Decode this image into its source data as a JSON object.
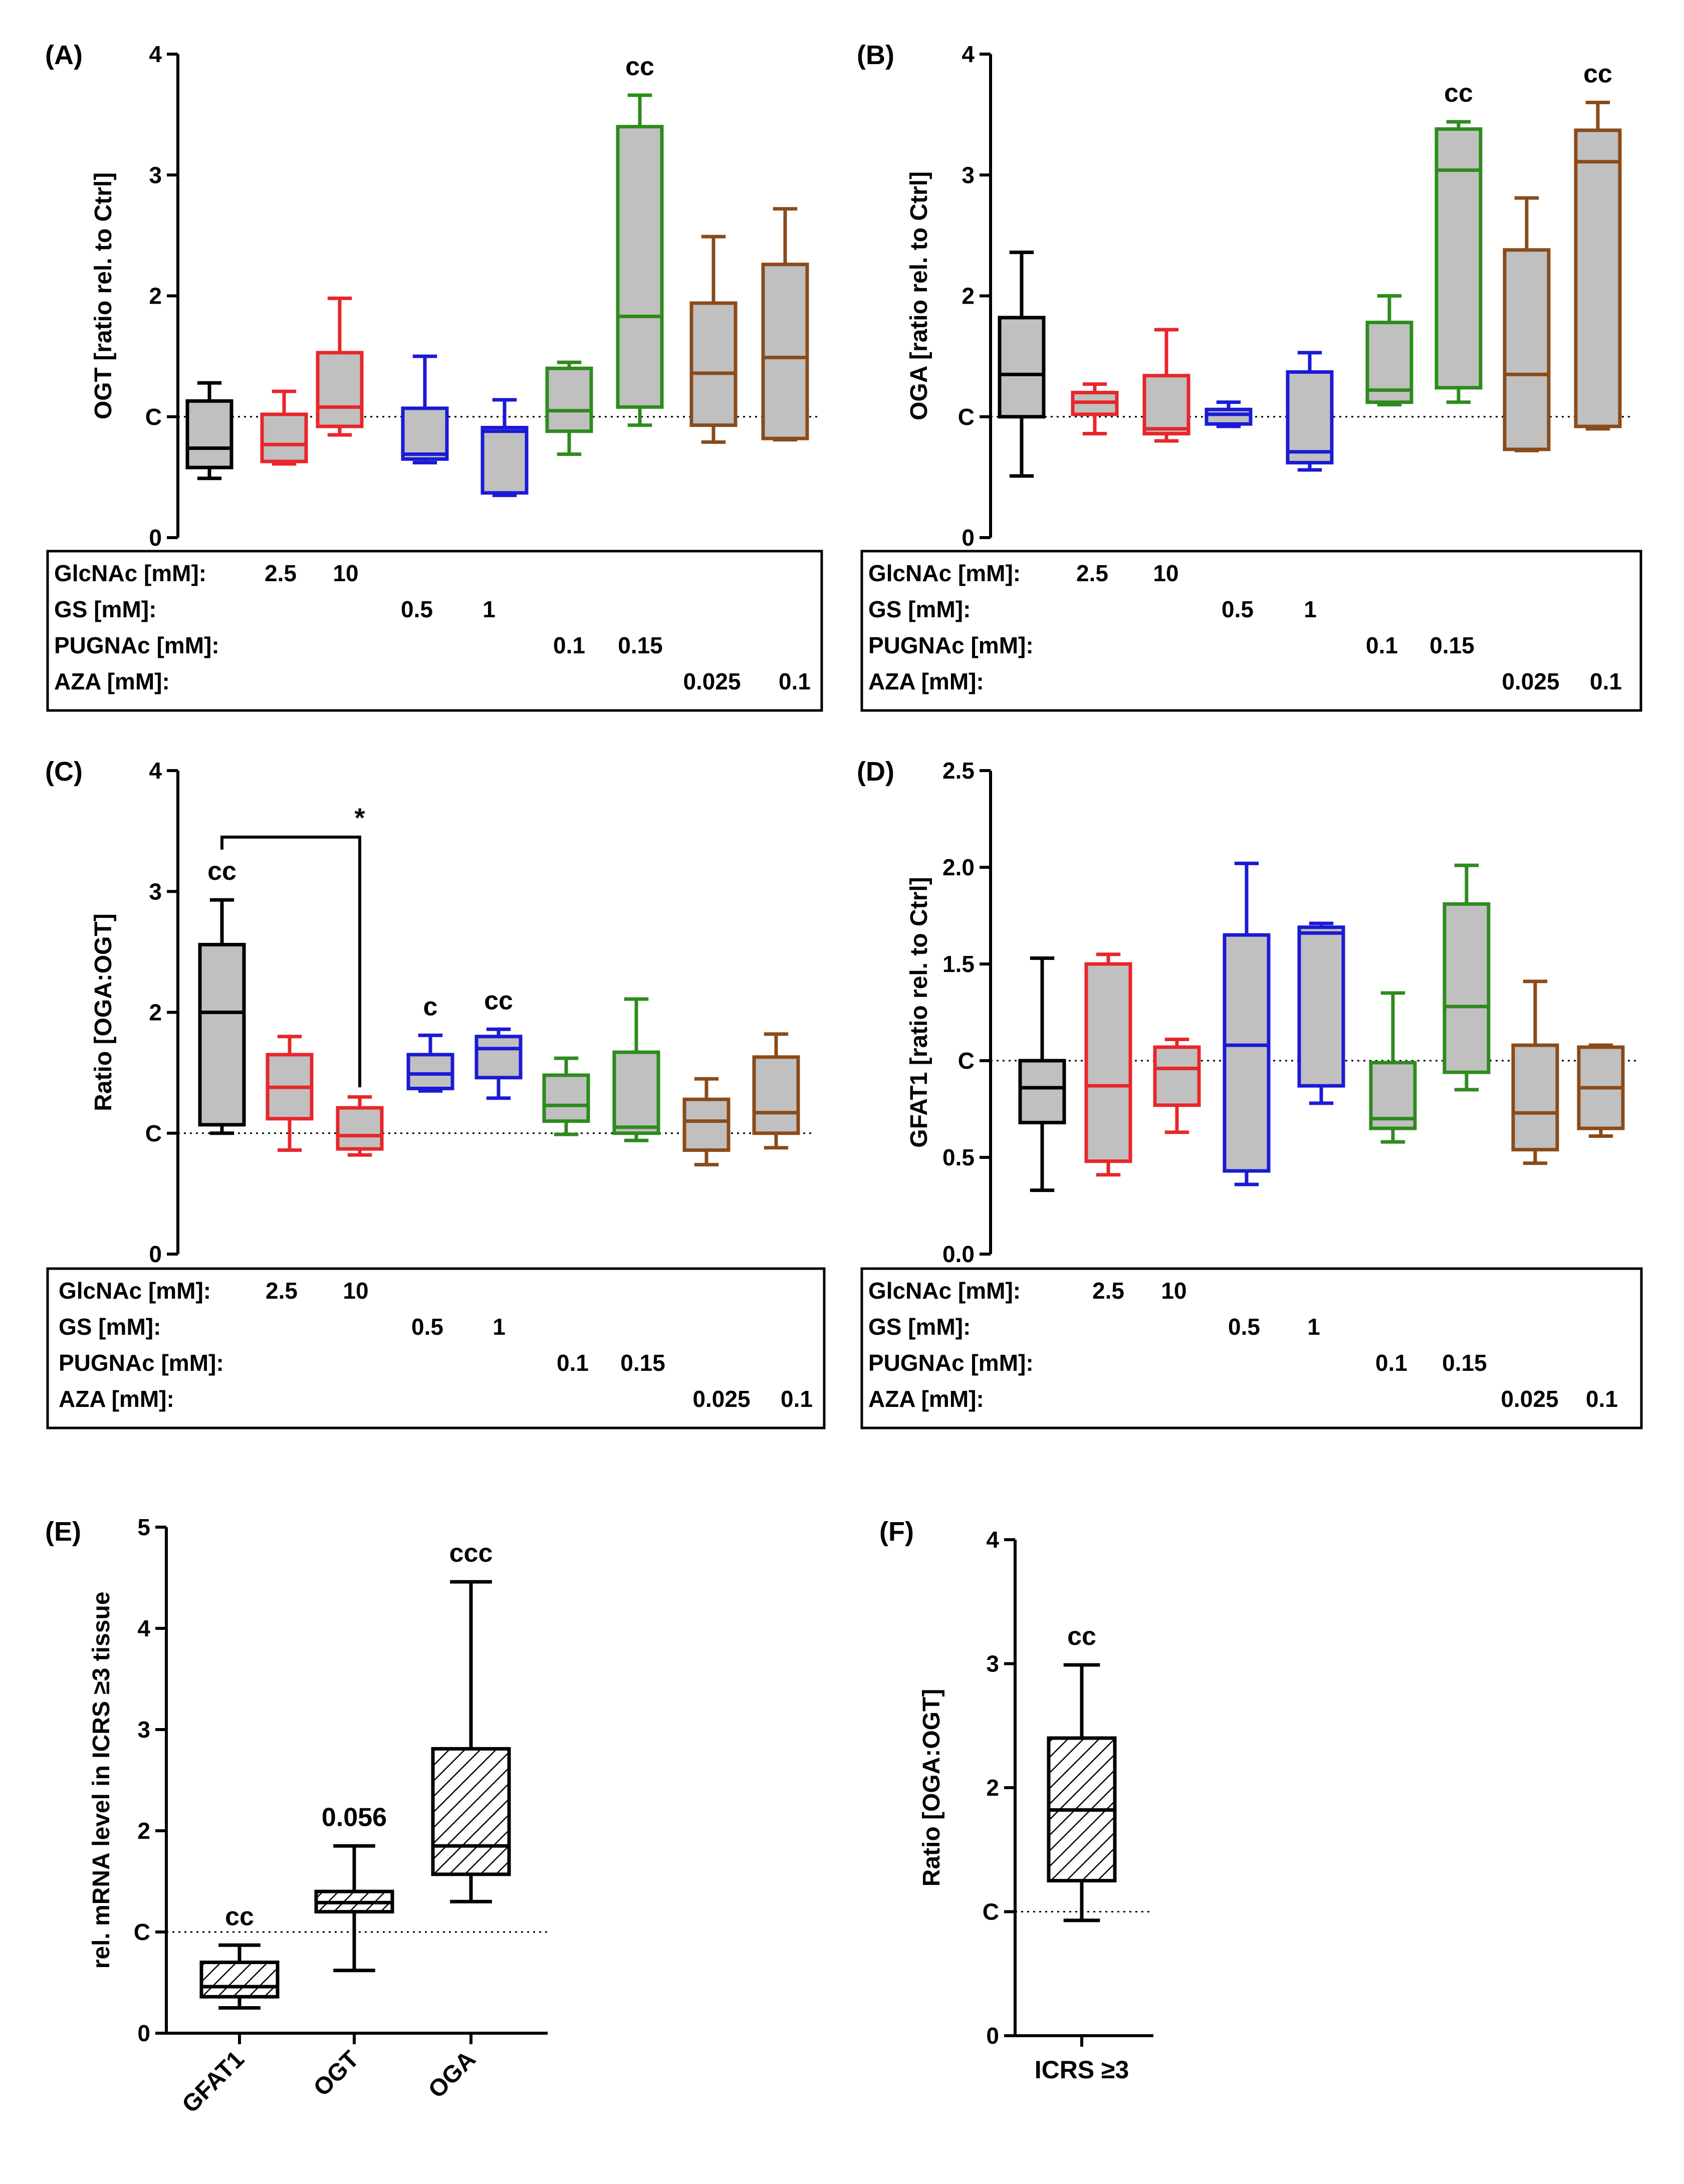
{
  "chart_data": [
    {
      "panel": "(A)",
      "type": "boxplot",
      "ylabel": "OGT [ratio rel. to Ctrl]",
      "ylim": [
        0,
        4
      ],
      "ticks": [
        0,
        1,
        2,
        3,
        4
      ],
      "tick_labels": [
        "0",
        "C",
        "2",
        "3",
        "4"
      ],
      "reference_line": 1,
      "boxes": [
        {
          "whisker_low": 0.49,
          "q1": 0.58,
          "median": 0.74,
          "q3": 1.13,
          "whisker_high": 1.28,
          "color": "#000000",
          "sig": ""
        },
        {
          "whisker_low": 0.61,
          "q1": 0.63,
          "median": 0.77,
          "q3": 1.02,
          "whisker_high": 1.21,
          "color": "#e8262b",
          "sig": ""
        },
        {
          "whisker_low": 0.85,
          "q1": 0.92,
          "median": 1.08,
          "q3": 1.53,
          "whisker_high": 1.98,
          "color": "#e8262b",
          "sig": ""
        },
        {
          "whisker_low": 0.62,
          "q1": 0.65,
          "median": 0.69,
          "q3": 1.07,
          "whisker_high": 1.5,
          "color": "#1a1ad6",
          "sig": ""
        },
        {
          "whisker_low": 0.35,
          "q1": 0.37,
          "median": 0.88,
          "q3": 0.91,
          "whisker_high": 1.14,
          "color": "#1a1ad6",
          "sig": ""
        },
        {
          "whisker_low": 0.69,
          "q1": 0.88,
          "median": 1.05,
          "q3": 1.4,
          "whisker_high": 1.45,
          "color": "#2e8b1e",
          "sig": ""
        },
        {
          "whisker_low": 0.93,
          "q1": 1.08,
          "median": 1.83,
          "q3": 3.4,
          "whisker_high": 3.66,
          "color": "#2e8b1e",
          "sig": "cc"
        },
        {
          "whisker_low": 0.79,
          "q1": 0.93,
          "median": 1.36,
          "q3": 1.94,
          "whisker_high": 2.49,
          "color": "#8a4b1a",
          "sig": ""
        },
        {
          "whisker_low": 0.81,
          "q1": 0.82,
          "median": 1.49,
          "q3": 2.26,
          "whisker_high": 2.72,
          "color": "#8a4b1a",
          "sig": ""
        }
      ],
      "treatments": [
        {
          "label": "GlcNAc [mM]:",
          "values": [
            "2.5",
            "10",
            "",
            "",
            "",
            "",
            "",
            ""
          ]
        },
        {
          "label": "GS [mM]:",
          "values": [
            "",
            "",
            "0.5",
            "1",
            "",
            "",
            "",
            ""
          ]
        },
        {
          "label": "PUGNAc [mM]:",
          "values": [
            "",
            "",
            "",
            "",
            "0.1",
            "0.15",
            "",
            ""
          ]
        },
        {
          "label": "AZA [mM]:",
          "values": [
            "",
            "",
            "",
            "",
            "",
            "",
            "0.025",
            "0.1"
          ]
        }
      ]
    },
    {
      "panel": "(B)",
      "type": "boxplot",
      "ylabel": "OGA [ratio rel. to Ctrl]",
      "ylim": [
        0,
        4
      ],
      "ticks": [
        0,
        1,
        2,
        3,
        4
      ],
      "tick_labels": [
        "0",
        "C",
        "2",
        "3",
        "4"
      ],
      "reference_line": 1,
      "boxes": [
        {
          "whisker_low": 0.51,
          "q1": 1.0,
          "median": 1.35,
          "q3": 1.82,
          "whisker_high": 2.36,
          "color": "#000000",
          "sig": ""
        },
        {
          "whisker_low": 0.86,
          "q1": 1.02,
          "median": 1.12,
          "q3": 1.2,
          "whisker_high": 1.27,
          "color": "#e8262b",
          "sig": ""
        },
        {
          "whisker_low": 0.8,
          "q1": 0.86,
          "median": 0.9,
          "q3": 1.34,
          "whisker_high": 1.72,
          "color": "#e8262b",
          "sig": ""
        },
        {
          "whisker_low": 0.92,
          "q1": 0.94,
          "median": 1.02,
          "q3": 1.06,
          "whisker_high": 1.12,
          "color": "#1a1ad6",
          "sig": ""
        },
        {
          "whisker_low": 0.56,
          "q1": 0.62,
          "median": 0.71,
          "q3": 1.37,
          "whisker_high": 1.53,
          "color": "#1a1ad6",
          "sig": ""
        },
        {
          "whisker_low": 1.1,
          "q1": 1.12,
          "median": 1.22,
          "q3": 1.78,
          "whisker_high": 2.0,
          "color": "#2e8b1e",
          "sig": ""
        },
        {
          "whisker_low": 1.12,
          "q1": 1.24,
          "median": 3.04,
          "q3": 3.38,
          "whisker_high": 3.44,
          "color": "#2e8b1e",
          "sig": "cc"
        },
        {
          "whisker_low": 0.72,
          "q1": 0.73,
          "median": 1.35,
          "q3": 2.38,
          "whisker_high": 2.81,
          "color": "#8a4b1a",
          "sig": ""
        },
        {
          "whisker_low": 0.9,
          "q1": 0.92,
          "median": 3.11,
          "q3": 3.37,
          "whisker_high": 3.6,
          "color": "#8a4b1a",
          "sig": "cc"
        }
      ],
      "treatments": [
        {
          "label": "GlcNAc [mM]:",
          "values": [
            "2.5",
            "10",
            "",
            "",
            "",
            "",
            "",
            ""
          ]
        },
        {
          "label": "GS [mM]:",
          "values": [
            "",
            "",
            "0.5",
            "1",
            "",
            "",
            "",
            ""
          ]
        },
        {
          "label": "PUGNAc [mM]:",
          "values": [
            "",
            "",
            "",
            "",
            "0.1",
            "0.15",
            "",
            ""
          ]
        },
        {
          "label": "AZA [mM]:",
          "values": [
            "",
            "",
            "",
            "",
            "",
            "",
            "0.025",
            "0.1"
          ]
        }
      ]
    },
    {
      "panel": "(C)",
      "type": "boxplot",
      "ylabel": "Ratio [OGA:OGT]",
      "ylim": [
        0,
        4
      ],
      "ticks": [
        0,
        1,
        2,
        3,
        4
      ],
      "tick_labels": [
        "0",
        "C",
        "2",
        "3",
        "4"
      ],
      "reference_line": 1,
      "bracket": {
        "from": 1,
        "to": 3,
        "label": "*"
      },
      "boxes": [
        {
          "whisker_low": 1.0,
          "q1": 1.07,
          "median": 2.0,
          "q3": 2.56,
          "whisker_high": 2.93,
          "color": "#000000",
          "sig": "cc"
        },
        {
          "whisker_low": 0.86,
          "q1": 1.12,
          "median": 1.38,
          "q3": 1.65,
          "whisker_high": 1.8,
          "color": "#e8262b",
          "sig": ""
        },
        {
          "whisker_low": 0.82,
          "q1": 0.87,
          "median": 0.98,
          "q3": 1.21,
          "whisker_high": 1.3,
          "color": "#e8262b",
          "sig": ""
        },
        {
          "whisker_low": 1.35,
          "q1": 1.37,
          "median": 1.49,
          "q3": 1.65,
          "whisker_high": 1.81,
          "color": "#1a1ad6",
          "sig": "c"
        },
        {
          "whisker_low": 1.29,
          "q1": 1.46,
          "median": 1.7,
          "q3": 1.8,
          "whisker_high": 1.86,
          "color": "#1a1ad6",
          "sig": "cc"
        },
        {
          "whisker_low": 0.99,
          "q1": 1.1,
          "median": 1.23,
          "q3": 1.48,
          "whisker_high": 1.62,
          "color": "#2e8b1e",
          "sig": ""
        },
        {
          "whisker_low": 0.94,
          "q1": 1.0,
          "median": 1.05,
          "q3": 1.67,
          "whisker_high": 2.11,
          "color": "#2e8b1e",
          "sig": ""
        },
        {
          "whisker_low": 0.74,
          "q1": 0.86,
          "median": 1.1,
          "q3": 1.28,
          "whisker_high": 1.45,
          "color": "#8a4b1a",
          "sig": ""
        },
        {
          "whisker_low": 0.88,
          "q1": 1.0,
          "median": 1.17,
          "q3": 1.63,
          "whisker_high": 1.82,
          "color": "#8a4b1a",
          "sig": ""
        }
      ],
      "treatments": [
        {
          "label": "GlcNAc [mM]:",
          "values": [
            "2.5",
            "10",
            "",
            "",
            "",
            "",
            "",
            ""
          ]
        },
        {
          "label": "GS [mM]:",
          "values": [
            "",
            "",
            "0.5",
            "1",
            "",
            "",
            "",
            ""
          ]
        },
        {
          "label": "PUGNAc [mM]:",
          "values": [
            "",
            "",
            "",
            "",
            "0.1",
            "0.15",
            "",
            ""
          ]
        },
        {
          "label": "AZA [mM]:",
          "values": [
            "",
            "",
            "",
            "",
            "",
            "",
            "0.025",
            "0.1"
          ]
        }
      ]
    },
    {
      "panel": "(D)",
      "type": "boxplot",
      "ylabel": "GFAT1 [ratio rel. to Ctrl]",
      "ylim": [
        0,
        2.5
      ],
      "ticks": [
        0,
        0.5,
        1,
        1.5,
        2,
        2.5
      ],
      "tick_labels": [
        "0.0",
        "0.5",
        "C",
        "1.5",
        "2.0",
        "2.5"
      ],
      "reference_line": 1,
      "boxes": [
        {
          "whisker_low": 0.33,
          "q1": 0.68,
          "median": 0.86,
          "q3": 1.0,
          "whisker_high": 1.53,
          "color": "#000000",
          "sig": ""
        },
        {
          "whisker_low": 0.41,
          "q1": 0.48,
          "median": 0.87,
          "q3": 1.5,
          "whisker_high": 1.55,
          "color": "#e8262b",
          "sig": ""
        },
        {
          "whisker_low": 0.63,
          "q1": 0.77,
          "median": 0.96,
          "q3": 1.07,
          "whisker_high": 1.11,
          "color": "#e8262b",
          "sig": ""
        },
        {
          "whisker_low": 0.36,
          "q1": 0.43,
          "median": 1.08,
          "q3": 1.65,
          "whisker_high": 2.02,
          "color": "#1a1ad6",
          "sig": ""
        },
        {
          "whisker_low": 0.78,
          "q1": 0.87,
          "median": 1.66,
          "q3": 1.69,
          "whisker_high": 1.71,
          "color": "#1a1ad6",
          "sig": ""
        },
        {
          "whisker_low": 0.58,
          "q1": 0.65,
          "median": 0.7,
          "q3": 0.99,
          "whisker_high": 1.35,
          "color": "#2e8b1e",
          "sig": ""
        },
        {
          "whisker_low": 0.85,
          "q1": 0.94,
          "median": 1.28,
          "q3": 1.81,
          "whisker_high": 2.01,
          "color": "#2e8b1e",
          "sig": ""
        },
        {
          "whisker_low": 0.47,
          "q1": 0.54,
          "median": 0.73,
          "q3": 1.08,
          "whisker_high": 1.41,
          "color": "#8a4b1a",
          "sig": ""
        },
        {
          "whisker_low": 0.61,
          "q1": 0.65,
          "median": 0.86,
          "q3": 1.07,
          "whisker_high": 1.08,
          "color": "#8a4b1a",
          "sig": ""
        }
      ],
      "treatments": [
        {
          "label": "GlcNAc [mM]:",
          "values": [
            "2.5",
            "10",
            "",
            "",
            "",
            "",
            "",
            ""
          ]
        },
        {
          "label": "GS [mM]:",
          "values": [
            "",
            "",
            "0.5",
            "1",
            "",
            "",
            "",
            ""
          ]
        },
        {
          "label": "PUGNAc [mM]:",
          "values": [
            "",
            "",
            "",
            "",
            "0.1",
            "0.15",
            "",
            ""
          ]
        },
        {
          "label": "AZA [mM]:",
          "values": [
            "",
            "",
            "",
            "",
            "",
            "",
            "0.025",
            "0.1"
          ]
        }
      ]
    },
    {
      "panel": "(E)",
      "type": "boxplot",
      "ylabel": "rel. mRNA level in ICRS ≥3 tissue",
      "ylim": [
        0,
        5
      ],
      "ticks": [
        0,
        1,
        2,
        3,
        4,
        5
      ],
      "tick_labels": [
        "0",
        "C",
        "2",
        "3",
        "4",
        "5"
      ],
      "reference_line": 1,
      "categories": [
        "GFAT1",
        "OGT",
        "OGA"
      ],
      "boxes": [
        {
          "whisker_low": 0.25,
          "q1": 0.36,
          "median": 0.46,
          "q3": 0.7,
          "whisker_high": 0.87,
          "sig": "cc"
        },
        {
          "whisker_low": 0.62,
          "q1": 1.2,
          "median": 1.29,
          "q3": 1.4,
          "whisker_high": 1.85,
          "sig": "0.056"
        },
        {
          "whisker_low": 1.3,
          "q1": 1.57,
          "median": 1.85,
          "q3": 2.81,
          "whisker_high": 4.46,
          "sig": "ccc"
        }
      ]
    },
    {
      "panel": "(F)",
      "type": "boxplot",
      "ylabel": "Ratio [OGA:OGT]",
      "ylim": [
        0,
        4
      ],
      "ticks": [
        0,
        1,
        2,
        3,
        4
      ],
      "tick_labels": [
        "0",
        "C",
        "2",
        "3",
        "4"
      ],
      "reference_line": 1,
      "categories": [
        "ICRS ≥3"
      ],
      "boxes": [
        {
          "whisker_low": 0.93,
          "q1": 1.25,
          "median": 1.82,
          "q3": 2.4,
          "whisker_high": 2.99,
          "sig": "cc"
        }
      ]
    }
  ]
}
